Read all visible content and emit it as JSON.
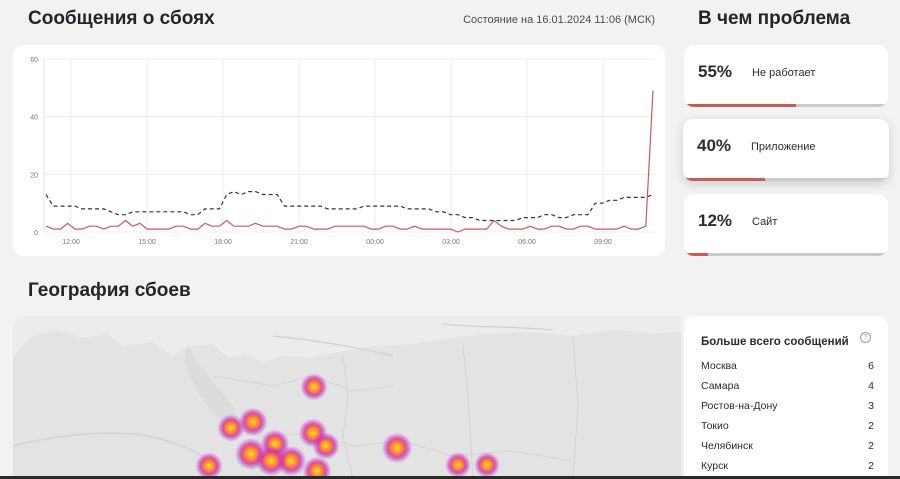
{
  "header": {
    "title": "Сообщения о сбоях",
    "status": "Состояние на 16.01.2024 11:06 (МСК)",
    "problems_title": "В чем проблема",
    "geo_title": "География сбоев"
  },
  "colors": {
    "accent": "#c95b54",
    "baseline": "#333333",
    "track": "#c9c9cf"
  },
  "problems": [
    {
      "percent": "55%",
      "label": "Не работает",
      "fill": 0.55
    },
    {
      "percent": "40%",
      "label": "Приложение",
      "fill": 0.4
    },
    {
      "percent": "12%",
      "label": "Сайт",
      "fill": 0.12
    }
  ],
  "top_cities": {
    "title": "Больше всего сообщений",
    "help_icon": "question-circle-icon",
    "rows": [
      {
        "city": "Москва",
        "count": "6"
      },
      {
        "city": "Самара",
        "count": "4"
      },
      {
        "city": "Ростов-на-Дону",
        "count": "3"
      },
      {
        "city": "Токио",
        "count": "2"
      },
      {
        "city": "Челябинск",
        "count": "2"
      },
      {
        "city": "Курск",
        "count": "2"
      }
    ]
  },
  "chart_data": {
    "type": "line",
    "ylim": [
      0,
      60
    ],
    "yticks": [
      "0",
      "20",
      "40",
      "60"
    ],
    "xticks": [
      "12:00",
      "15:00",
      "18:00",
      "21:00",
      "00:00",
      "03:00",
      "06:00",
      "09:00"
    ],
    "grid": true,
    "series": [
      {
        "style": "dashed",
        "color": "#333333",
        "values": [
          13,
          9,
          9,
          9,
          9,
          8,
          8,
          8,
          8,
          7,
          6,
          6,
          7,
          7,
          7,
          7,
          7,
          7,
          7,
          7,
          6,
          6,
          8,
          8,
          8,
          13,
          14,
          13,
          14,
          14,
          13,
          13,
          13,
          9,
          9,
          9,
          9,
          9,
          9,
          8,
          8,
          8,
          8,
          8,
          9,
          9,
          9,
          9,
          9,
          9,
          8,
          8,
          8,
          8,
          7,
          7,
          6,
          6,
          5,
          5,
          4,
          4,
          4,
          4,
          4,
          4,
          5,
          5,
          5,
          6,
          6,
          5,
          5,
          6,
          6,
          6,
          10,
          10,
          11,
          11,
          12,
          12,
          12,
          12,
          13
        ]
      },
      {
        "style": "solid",
        "color": "#c95b54",
        "values": [
          2,
          1,
          1,
          3,
          1,
          1,
          2,
          2,
          1,
          2,
          2,
          4,
          2,
          3,
          1,
          1,
          1,
          1,
          2,
          2,
          1,
          1,
          3,
          2,
          2,
          4,
          2,
          2,
          2,
          3,
          2,
          2,
          2,
          1,
          1,
          2,
          2,
          1,
          1,
          1,
          2,
          2,
          2,
          2,
          2,
          1,
          1,
          2,
          2,
          1,
          1,
          2,
          1,
          1,
          1,
          1,
          1,
          0,
          1,
          1,
          1,
          1,
          4,
          2,
          1,
          1,
          1,
          2,
          1,
          1,
          2,
          2,
          1,
          1,
          2,
          2,
          1,
          1,
          1,
          1,
          2,
          1,
          1,
          2,
          49
        ]
      }
    ]
  },
  "map": {
    "hotspots": [
      {
        "level": 0.7
      },
      {
        "level": 0.8
      },
      {
        "level": 0.7
      },
      {
        "level": 1.0
      },
      {
        "level": 0.8
      },
      {
        "level": 0.9
      },
      {
        "level": 0.9
      },
      {
        "level": 0.8
      },
      {
        "level": 0.7
      },
      {
        "level": 0.7
      },
      {
        "level": 0.9
      },
      {
        "level": 0.6
      },
      {
        "level": 0.6
      },
      {
        "level": 0.8
      }
    ]
  }
}
